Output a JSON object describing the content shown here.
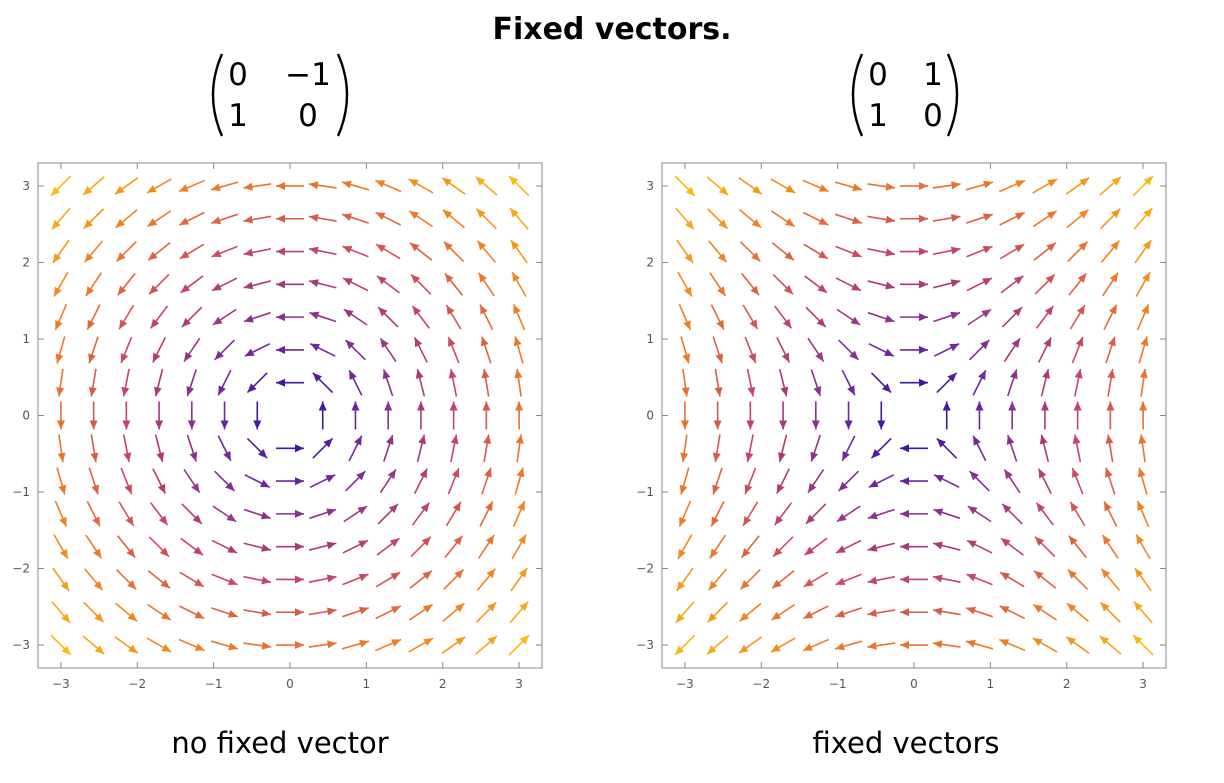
{
  "title": "Fixed vectors.",
  "panels": [
    {
      "matrix": [
        [
          "0",
          "−1"
        ],
        [
          "1",
          "0"
        ]
      ],
      "caption": "no fixed vector",
      "chart_data": {
        "type": "vector_field",
        "field": "(-y, x)",
        "matrix_values": [
          [
            0,
            -1
          ],
          [
            1,
            0
          ]
        ],
        "xlim": [
          -3.3,
          3.3
        ],
        "ylim": [
          -3.3,
          3.3
        ],
        "xticks": [
          -3,
          -2,
          -1,
          0,
          1,
          2,
          3
        ],
        "yticks": [
          -3,
          -2,
          -1,
          0,
          1,
          2,
          3
        ],
        "xticklabels": [
          "−3",
          "−2",
          "−1",
          "0",
          "1",
          "2",
          "3"
        ],
        "yticklabels": [
          "−3",
          "−2",
          "−1",
          "0",
          "1",
          "2",
          "3"
        ],
        "grid_points": 15,
        "color_scale": "magnitude: blue (small) to purple, red, orange, yellow (large)",
        "colors": [
          "#1a0a9e",
          "#7a2a9c",
          "#c2416b",
          "#f07a24",
          "#f9b90d"
        ]
      }
    },
    {
      "matrix": [
        [
          "0",
          "1"
        ],
        [
          "1",
          "0"
        ]
      ],
      "caption": "fixed vectors",
      "chart_data": {
        "type": "vector_field",
        "field": "(y, x)",
        "matrix_values": [
          [
            0,
            1
          ],
          [
            1,
            0
          ]
        ],
        "xlim": [
          -3.3,
          3.3
        ],
        "ylim": [
          -3.3,
          3.3
        ],
        "xticks": [
          -3,
          -2,
          -1,
          0,
          1,
          2,
          3
        ],
        "yticks": [
          -3,
          -2,
          -1,
          0,
          1,
          2,
          3
        ],
        "xticklabels": [
          "−3",
          "−2",
          "−1",
          "0",
          "1",
          "2",
          "3"
        ],
        "yticklabels": [
          "−3",
          "−2",
          "−1",
          "0",
          "1",
          "2",
          "3"
        ],
        "grid_points": 15,
        "color_scale": "magnitude: blue (small) to purple, red, orange, yellow (large)",
        "colors": [
          "#1a0a9e",
          "#7a2a9c",
          "#c2416b",
          "#f07a24",
          "#f9b90d"
        ]
      }
    }
  ]
}
